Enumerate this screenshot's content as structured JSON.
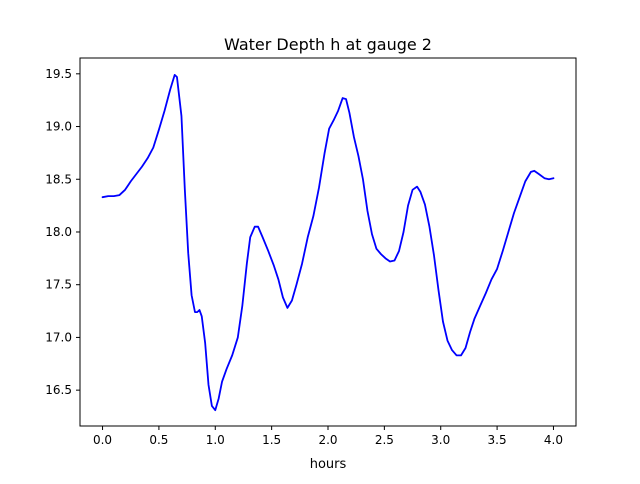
{
  "chart_data": {
    "type": "line",
    "title": "Water Depth h at gauge 2",
    "xlabel": "hours",
    "ylabel": "",
    "xlim": [
      -0.2,
      4.2
    ],
    "ylim": [
      16.16,
      19.65
    ],
    "grid": false,
    "x_ticks": [
      0.0,
      0.5,
      1.0,
      1.5,
      2.0,
      2.5,
      3.0,
      3.5,
      4.0
    ],
    "x_tick_labels": [
      "0.0",
      "0.5",
      "1.0",
      "1.5",
      "2.0",
      "2.5",
      "3.0",
      "3.5",
      "4.0"
    ],
    "y_ticks": [
      16.5,
      17.0,
      17.5,
      18.0,
      18.5,
      19.0,
      19.5
    ],
    "y_tick_labels": [
      "16.5",
      "17.0",
      "17.5",
      "18.0",
      "18.5",
      "19.0",
      "19.5"
    ],
    "series": [
      {
        "color": "#0000ff",
        "points": [
          [
            0.0,
            18.33
          ],
          [
            0.05,
            18.34
          ],
          [
            0.1,
            18.34
          ],
          [
            0.15,
            18.35
          ],
          [
            0.2,
            18.4
          ],
          [
            0.25,
            18.48
          ],
          [
            0.3,
            18.55
          ],
          [
            0.35,
            18.62
          ],
          [
            0.4,
            18.7
          ],
          [
            0.45,
            18.8
          ],
          [
            0.5,
            18.97
          ],
          [
            0.55,
            19.15
          ],
          [
            0.6,
            19.35
          ],
          [
            0.64,
            19.49
          ],
          [
            0.66,
            19.47
          ],
          [
            0.7,
            19.1
          ],
          [
            0.73,
            18.4
          ],
          [
            0.76,
            17.8
          ],
          [
            0.79,
            17.4
          ],
          [
            0.82,
            17.24
          ],
          [
            0.84,
            17.24
          ],
          [
            0.86,
            17.26
          ],
          [
            0.88,
            17.2
          ],
          [
            0.91,
            16.95
          ],
          [
            0.94,
            16.55
          ],
          [
            0.97,
            16.35
          ],
          [
            1.0,
            16.31
          ],
          [
            1.03,
            16.42
          ],
          [
            1.06,
            16.58
          ],
          [
            1.1,
            16.7
          ],
          [
            1.15,
            16.83
          ],
          [
            1.2,
            17.0
          ],
          [
            1.24,
            17.3
          ],
          [
            1.28,
            17.7
          ],
          [
            1.31,
            17.95
          ],
          [
            1.35,
            18.05
          ],
          [
            1.38,
            18.05
          ],
          [
            1.42,
            17.95
          ],
          [
            1.47,
            17.82
          ],
          [
            1.52,
            17.68
          ],
          [
            1.56,
            17.55
          ],
          [
            1.6,
            17.38
          ],
          [
            1.64,
            17.28
          ],
          [
            1.68,
            17.35
          ],
          [
            1.72,
            17.5
          ],
          [
            1.77,
            17.7
          ],
          [
            1.82,
            17.95
          ],
          [
            1.87,
            18.15
          ],
          [
            1.92,
            18.42
          ],
          [
            1.97,
            18.75
          ],
          [
            2.01,
            18.98
          ],
          [
            2.05,
            19.06
          ],
          [
            2.09,
            19.15
          ],
          [
            2.13,
            19.27
          ],
          [
            2.16,
            19.26
          ],
          [
            2.19,
            19.13
          ],
          [
            2.23,
            18.9
          ],
          [
            2.27,
            18.72
          ],
          [
            2.31,
            18.5
          ],
          [
            2.35,
            18.2
          ],
          [
            2.39,
            17.98
          ],
          [
            2.43,
            17.84
          ],
          [
            2.47,
            17.79
          ],
          [
            2.51,
            17.75
          ],
          [
            2.55,
            17.72
          ],
          [
            2.59,
            17.73
          ],
          [
            2.63,
            17.82
          ],
          [
            2.67,
            18.0
          ],
          [
            2.71,
            18.25
          ],
          [
            2.75,
            18.4
          ],
          [
            2.79,
            18.43
          ],
          [
            2.82,
            18.38
          ],
          [
            2.86,
            18.26
          ],
          [
            2.9,
            18.05
          ],
          [
            2.94,
            17.78
          ],
          [
            2.98,
            17.45
          ],
          [
            3.02,
            17.15
          ],
          [
            3.06,
            16.97
          ],
          [
            3.1,
            16.88
          ],
          [
            3.14,
            16.83
          ],
          [
            3.18,
            16.83
          ],
          [
            3.22,
            16.9
          ],
          [
            3.26,
            17.05
          ],
          [
            3.3,
            17.18
          ],
          [
            3.35,
            17.3
          ],
          [
            3.4,
            17.42
          ],
          [
            3.45,
            17.55
          ],
          [
            3.5,
            17.65
          ],
          [
            3.55,
            17.82
          ],
          [
            3.6,
            18.0
          ],
          [
            3.65,
            18.18
          ],
          [
            3.7,
            18.33
          ],
          [
            3.75,
            18.48
          ],
          [
            3.8,
            18.57
          ],
          [
            3.83,
            18.58
          ],
          [
            3.87,
            18.55
          ],
          [
            3.92,
            18.51
          ],
          [
            3.96,
            18.5
          ],
          [
            4.0,
            18.51
          ]
        ]
      }
    ]
  }
}
